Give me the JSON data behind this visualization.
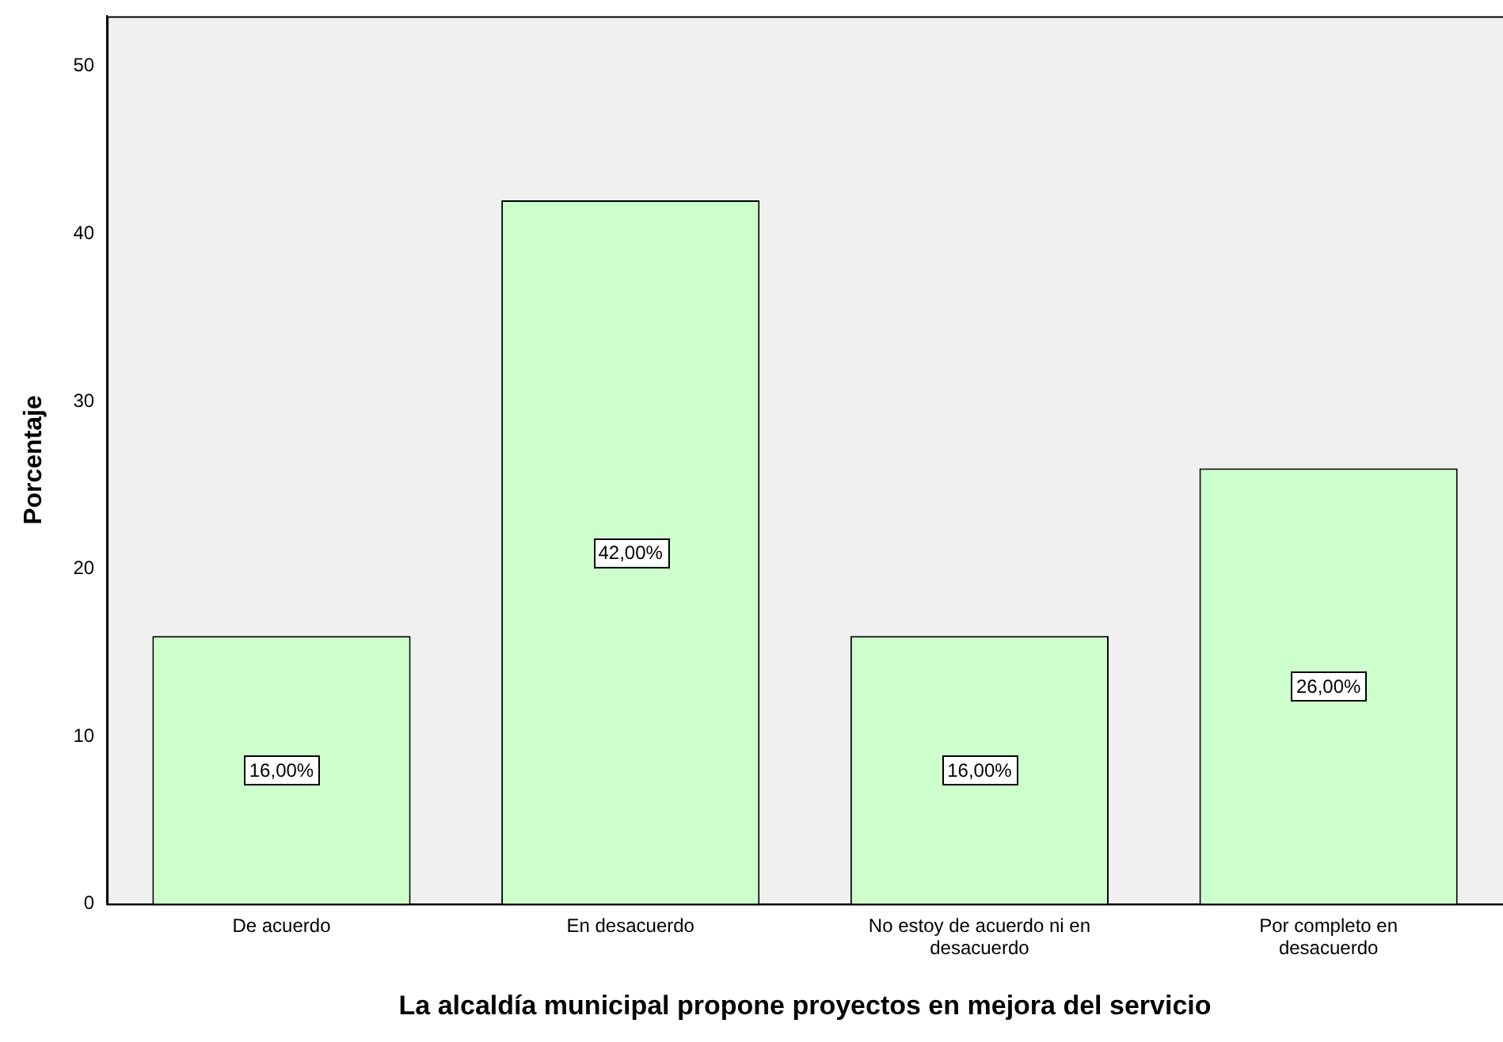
{
  "chart_data": {
    "type": "bar",
    "xlabel": "La alcaldía municipal propone proyectos en mejora del servicio",
    "ylabel": "Porcentaje",
    "categories": [
      "De acuerdo",
      "En desacuerdo",
      "No estoy de acuerdo ni en desacuerdo",
      "Por completo en desacuerdo"
    ],
    "values": [
      16,
      42,
      16,
      26
    ],
    "value_labels": [
      "16,00%",
      "42,00%",
      "16,00%",
      "26,00%"
    ],
    "color": "#ccffcc",
    "ylim": [
      0,
      53
    ],
    "yticks": [
      0,
      10,
      20,
      30,
      40,
      50
    ],
    "grid": false,
    "legend": false
  }
}
